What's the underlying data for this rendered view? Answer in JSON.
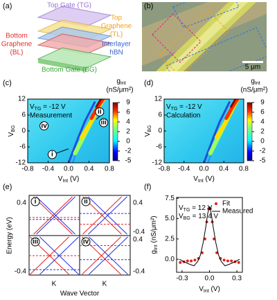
{
  "panels": {
    "a": {
      "label": "(a)",
      "top_gate": "Top Gate (TG)",
      "top_graphene": [
        "Top",
        "Graphene",
        "(TL)"
      ],
      "interlayer": [
        "Interlayer",
        "hBN"
      ],
      "bottom_graphene": [
        "Bottom",
        "Graphene",
        "(BL)"
      ],
      "bottom_gate": "Bottom Gate (BG)"
    },
    "b": {
      "label": "(b)",
      "scale": "5 μm"
    },
    "c": {
      "label": "(c)",
      "gate": [
        "V",
        "TG",
        " = -12 V"
      ],
      "mode": "Measurement",
      "markers": [
        "i",
        "ii",
        "iii",
        "iv"
      ],
      "xlabel": [
        "V",
        "Int",
        " (V)"
      ],
      "ylabel": [
        "V",
        "BG"
      ],
      "xlim": [
        -0.8,
        0.8
      ],
      "ylim": [
        -12,
        12
      ],
      "xticks": [
        -0.8,
        -0.4,
        {
          "value": 0,
          "label": "0.0"
        },
        0.4,
        0.8
      ],
      "yticks": [
        12,
        6,
        0,
        -6,
        -12
      ],
      "cbar_title": [
        "g",
        "Int"
      ],
      "cbar_unit": "(nS/μm²)",
      "cbar_ticks": [
        9,
        6,
        4,
        2,
        0,
        -2,
        -5
      ]
    },
    "d": {
      "label": "(d)",
      "gate": [
        "V",
        "TG",
        " = -12 V"
      ],
      "mode": "Calculation",
      "xlabel": [
        "V",
        "Int",
        " (V)"
      ],
      "ylabel": [
        "V",
        "BG"
      ],
      "xlim": [
        -0.8,
        0.8
      ],
      "ylim": [
        -12,
        12
      ],
      "xticks": [
        -0.8,
        -0.4,
        {
          "value": 0,
          "label": "0.0"
        },
        0.4,
        0.8
      ],
      "yticks": [
        12,
        6,
        0,
        -6,
        -12
      ],
      "cbar_title": [
        "g",
        "Int"
      ],
      "cbar_unit": "(nS/μm²)",
      "cbar_ticks": [
        9,
        6,
        4,
        2,
        0,
        -2,
        -5
      ]
    },
    "e": {
      "label": "(e)",
      "ylabel": "Energy (eV)",
      "xlabel": "Wave Vector",
      "k_labels": [
        "K",
        "K"
      ],
      "subpanels": [
        "i",
        "ii",
        "iii",
        "iv"
      ],
      "left_ticks": [
        0.4,
        -0.4
      ],
      "right_ticks": [
        0.4,
        -0.4,
        0.4,
        -0.4
      ]
    },
    "f": {
      "label": "(f)",
      "gate_top": [
        "V",
        "TG",
        " = 12 V"
      ],
      "gate_bottom": [
        "V",
        "BG",
        " = 13.4 V"
      ],
      "xlabel": [
        "V",
        "Int",
        " (V)"
      ],
      "ylabel": [
        "g",
        "Int",
        " (nS/μm²)"
      ],
      "xlim": [
        -0.36,
        0.36
      ],
      "ylim": [
        -1.6,
        7.6
      ],
      "xticks": [
        -0.3,
        {
          "value": 0,
          "label": "0.0"
        },
        0.3
      ],
      "yticks": [
        {
          "value": 0,
          "label": "0.0"
        },
        2.5,
        {
          "value": 5,
          "label": "5.0"
        },
        7.5
      ],
      "series": [
        {
          "name": "Fit",
          "color": "#e02020",
          "x": [
            -0.32,
            -0.28,
            -0.24,
            -0.2,
            -0.16,
            -0.12,
            -0.08,
            -0.05,
            -0.03,
            -0.01,
            0.01,
            0.03,
            0.05,
            0.08,
            0.12,
            0.16,
            0.2,
            0.24,
            0.28,
            0.32
          ],
          "values": [
            -0.4,
            -0.3,
            -0.2,
            -0.2,
            -0.1,
            0.1,
            0.8,
            2.5,
            4.6,
            6.2,
            6.2,
            4.6,
            2.5,
            0.8,
            0.1,
            -0.1,
            -0.2,
            -0.2,
            -0.3,
            -0.4
          ]
        },
        {
          "name": "Measured",
          "color": "#000000",
          "x": [
            -0.33,
            -0.28,
            -0.22,
            -0.17,
            -0.13,
            -0.1,
            -0.07,
            -0.04,
            -0.02,
            0,
            0.02,
            0.04,
            0.07,
            0.1,
            0.13,
            0.17,
            0.22,
            0.28,
            0.33
          ],
          "values": [
            0,
            -0.3,
            -0.6,
            -0.8,
            -0.3,
            0.5,
            2,
            4,
            5.6,
            6.5,
            5.6,
            4,
            2,
            0.5,
            -0.3,
            -0.8,
            -0.6,
            -0.3,
            0
          ]
        }
      ]
    }
  }
}
